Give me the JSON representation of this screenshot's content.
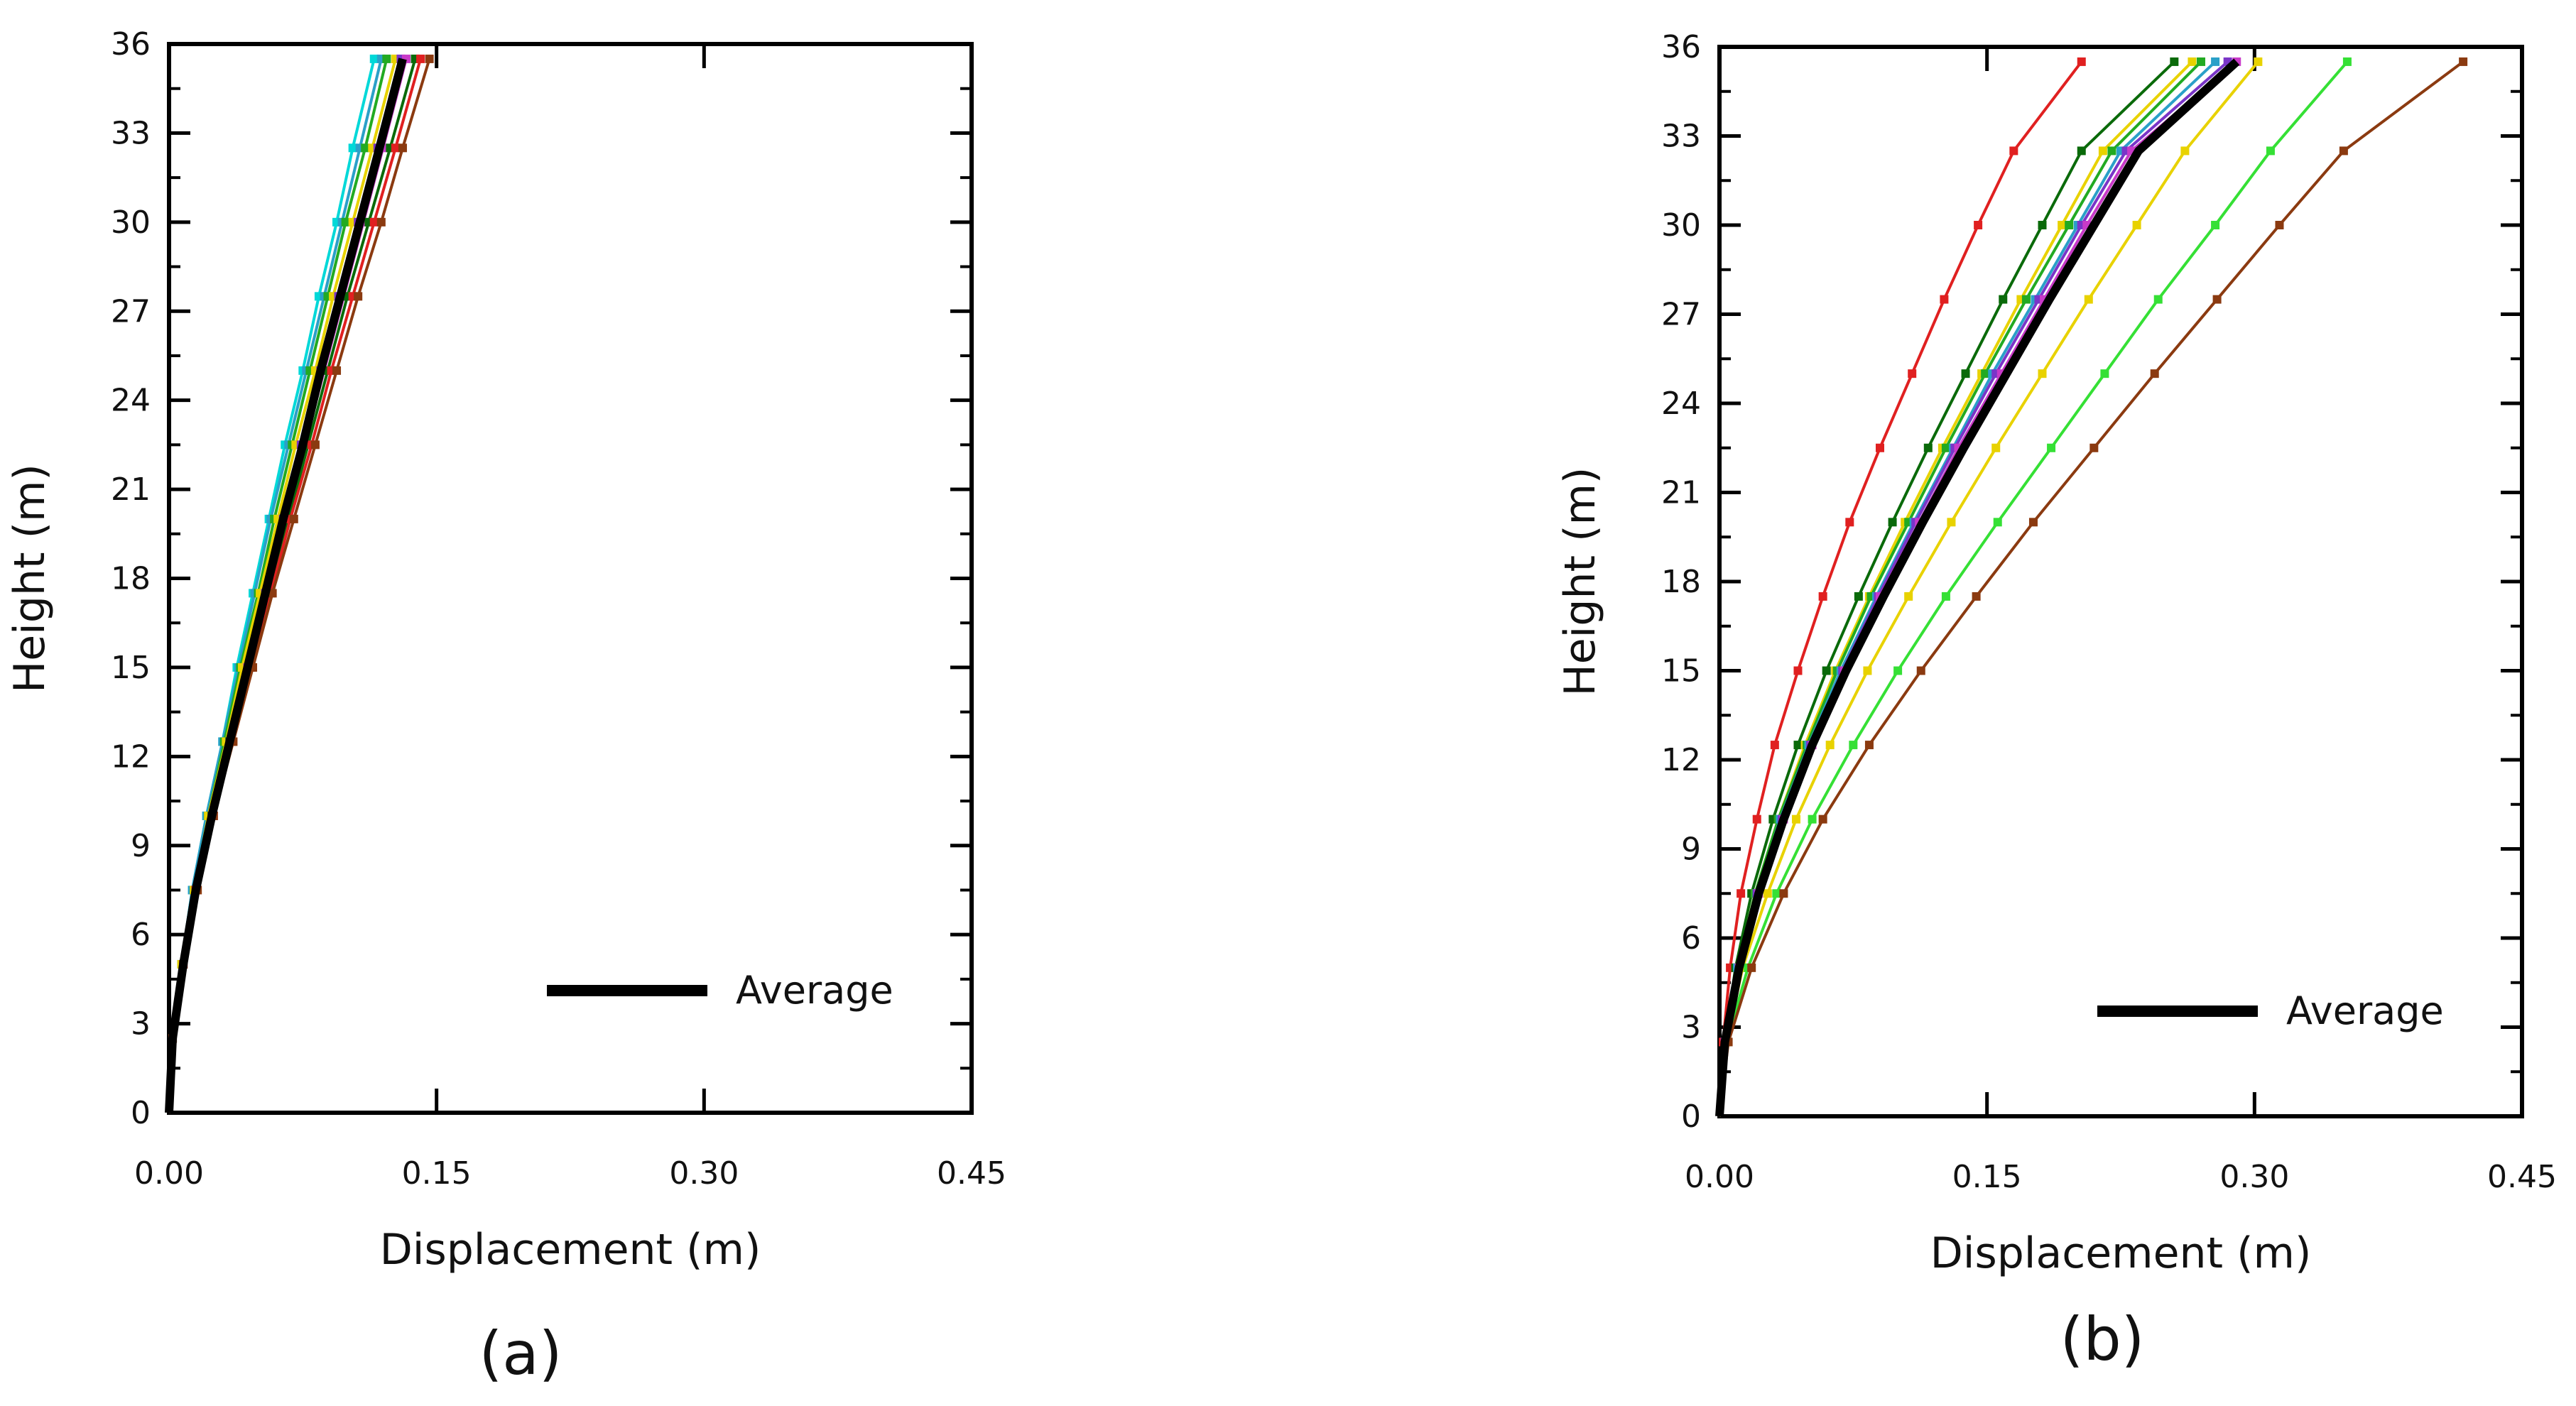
{
  "chart_data": [
    {
      "type": "line",
      "panel_label": "(a)",
      "xlabel": "Displacement (m)",
      "ylabel": "Height (m)",
      "xlim": [
        0,
        0.45
      ],
      "ylim": [
        0,
        36
      ],
      "xticks": [
        "0.00",
        "0.15",
        "0.30",
        "0.45"
      ],
      "yticks": [
        "0",
        "3",
        "6",
        "9",
        "12",
        "15",
        "18",
        "21",
        "24",
        "27",
        "30",
        "33",
        "36"
      ],
      "grid": false,
      "legend": {
        "placement": "lower-right",
        "label": "Average"
      },
      "heights": [
        0,
        2.5,
        5,
        7.5,
        10,
        12.5,
        15,
        17.5,
        20,
        22.5,
        25,
        27.5,
        30,
        32.5,
        35.5
      ],
      "series": [
        {
          "color": "#00d8d8",
          "x": [
            0,
            0.002,
            0.007,
            0.013,
            0.021,
            0.03,
            0.038,
            0.047,
            0.056,
            0.065,
            0.075,
            0.084,
            0.094,
            0.103,
            0.115
          ]
        },
        {
          "color": "#2aa0c8",
          "x": [
            0,
            0.002,
            0.007,
            0.013,
            0.021,
            0.03,
            0.039,
            0.048,
            0.057,
            0.067,
            0.077,
            0.087,
            0.097,
            0.107,
            0.119
          ]
        },
        {
          "color": "#22aa22",
          "x": [
            0,
            0.002,
            0.007,
            0.014,
            0.022,
            0.031,
            0.04,
            0.05,
            0.059,
            0.069,
            0.079,
            0.089,
            0.099,
            0.11,
            0.122
          ]
        },
        {
          "color": "#e8d200",
          "x": [
            0,
            0.002,
            0.007,
            0.014,
            0.022,
            0.032,
            0.041,
            0.051,
            0.061,
            0.071,
            0.082,
            0.092,
            0.103,
            0.114,
            0.127
          ]
        },
        {
          "color": "#7a35c8",
          "x": [
            0,
            0.002,
            0.008,
            0.015,
            0.024,
            0.034,
            0.044,
            0.054,
            0.064,
            0.074,
            0.085,
            0.095,
            0.106,
            0.117,
            0.13
          ]
        },
        {
          "color": "#c83ac8",
          "x": [
            0,
            0.002,
            0.008,
            0.015,
            0.024,
            0.034,
            0.044,
            0.055,
            0.065,
            0.076,
            0.087,
            0.098,
            0.109,
            0.12,
            0.133
          ]
        },
        {
          "color": "#0a6a0a",
          "x": [
            0,
            0.002,
            0.008,
            0.015,
            0.024,
            0.034,
            0.045,
            0.056,
            0.067,
            0.078,
            0.089,
            0.1,
            0.112,
            0.124,
            0.138
          ]
        },
        {
          "color": "#e02020",
          "x": [
            0,
            0.002,
            0.008,
            0.015,
            0.025,
            0.035,
            0.046,
            0.057,
            0.068,
            0.08,
            0.091,
            0.103,
            0.115,
            0.127,
            0.141
          ]
        },
        {
          "color": "#8b3a10",
          "x": [
            0,
            0.002,
            0.008,
            0.016,
            0.025,
            0.036,
            0.047,
            0.058,
            0.07,
            0.082,
            0.094,
            0.106,
            0.119,
            0.131,
            0.146
          ]
        }
      ],
      "average": {
        "color": "#000000",
        "x": [
          0,
          0.002,
          0.008,
          0.015,
          0.024,
          0.034,
          0.044,
          0.054,
          0.064,
          0.075,
          0.085,
          0.096,
          0.107,
          0.118,
          0.131
        ]
      }
    },
    {
      "type": "line",
      "panel_label": "(b)",
      "xlabel": "Displacement (m)",
      "ylabel": "Height (m)",
      "xlim": [
        0,
        0.45
      ],
      "ylim": [
        0,
        36
      ],
      "xticks": [
        "0.00",
        "0.15",
        "0.30",
        "0.45"
      ],
      "yticks": [
        "0",
        "3",
        "6",
        "9",
        "12",
        "15",
        "18",
        "21",
        "24",
        "27",
        "30",
        "33",
        "36"
      ],
      "grid": false,
      "legend": {
        "placement": "lower-right",
        "label": "Average"
      },
      "heights": [
        0,
        2.5,
        5,
        7.5,
        10,
        12.5,
        15,
        17.5,
        20,
        22.5,
        25,
        27.5,
        30,
        32.5,
        35.5
      ],
      "series": [
        {
          "color": "#e02020",
          "x": [
            0,
            0.002,
            0.006,
            0.012,
            0.021,
            0.031,
            0.044,
            0.058,
            0.073,
            0.09,
            0.108,
            0.126,
            0.145,
            0.165,
            0.203
          ]
        },
        {
          "color": "#0a6a0a",
          "x": [
            0,
            0.003,
            0.009,
            0.018,
            0.03,
            0.044,
            0.06,
            0.078,
            0.097,
            0.117,
            0.138,
            0.159,
            0.181,
            0.203,
            0.255
          ]
        },
        {
          "color": "#e8d200",
          "x": [
            0,
            0.003,
            0.01,
            0.02,
            0.033,
            0.048,
            0.065,
            0.084,
            0.104,
            0.125,
            0.147,
            0.169,
            0.192,
            0.215,
            0.265
          ]
        },
        {
          "color": "#22aa22",
          "x": [
            0,
            0.003,
            0.01,
            0.02,
            0.033,
            0.049,
            0.066,
            0.085,
            0.106,
            0.127,
            0.149,
            0.172,
            0.196,
            0.22,
            0.27
          ]
        },
        {
          "color": "#2aa0c8",
          "x": [
            0,
            0.003,
            0.01,
            0.021,
            0.034,
            0.05,
            0.068,
            0.088,
            0.109,
            0.131,
            0.153,
            0.177,
            0.201,
            0.225,
            0.278
          ]
        },
        {
          "color": "#7a35c8",
          "x": [
            0,
            0.003,
            0.011,
            0.021,
            0.035,
            0.051,
            0.069,
            0.089,
            0.11,
            0.132,
            0.155,
            0.179,
            0.203,
            0.228,
            0.285
          ]
        },
        {
          "color": "#c83ac8",
          "x": [
            0,
            0.003,
            0.011,
            0.022,
            0.036,
            0.052,
            0.07,
            0.09,
            0.112,
            0.134,
            0.158,
            0.182,
            0.206,
            0.231,
            0.29
          ]
        },
        {
          "color": "#e8d200",
          "x": [
            0,
            0.004,
            0.013,
            0.027,
            0.043,
            0.062,
            0.083,
            0.106,
            0.13,
            0.155,
            0.181,
            0.207,
            0.234,
            0.261,
            0.302
          ]
        },
        {
          "color": "#35e035",
          "x": [
            0,
            0.004,
            0.016,
            0.032,
            0.052,
            0.075,
            0.1,
            0.127,
            0.156,
            0.186,
            0.216,
            0.246,
            0.278,
            0.309,
            0.352
          ]
        },
        {
          "color": "#8b3a10",
          "x": [
            0,
            0.005,
            0.018,
            0.036,
            0.058,
            0.084,
            0.113,
            0.144,
            0.176,
            0.21,
            0.244,
            0.279,
            0.314,
            0.35,
            0.417
          ]
        }
      ],
      "average": {
        "color": "#000000",
        "x": [
          0,
          0.003,
          0.011,
          0.022,
          0.036,
          0.052,
          0.071,
          0.092,
          0.114,
          0.137,
          0.161,
          0.185,
          0.21,
          0.235,
          0.29
        ]
      }
    }
  ]
}
